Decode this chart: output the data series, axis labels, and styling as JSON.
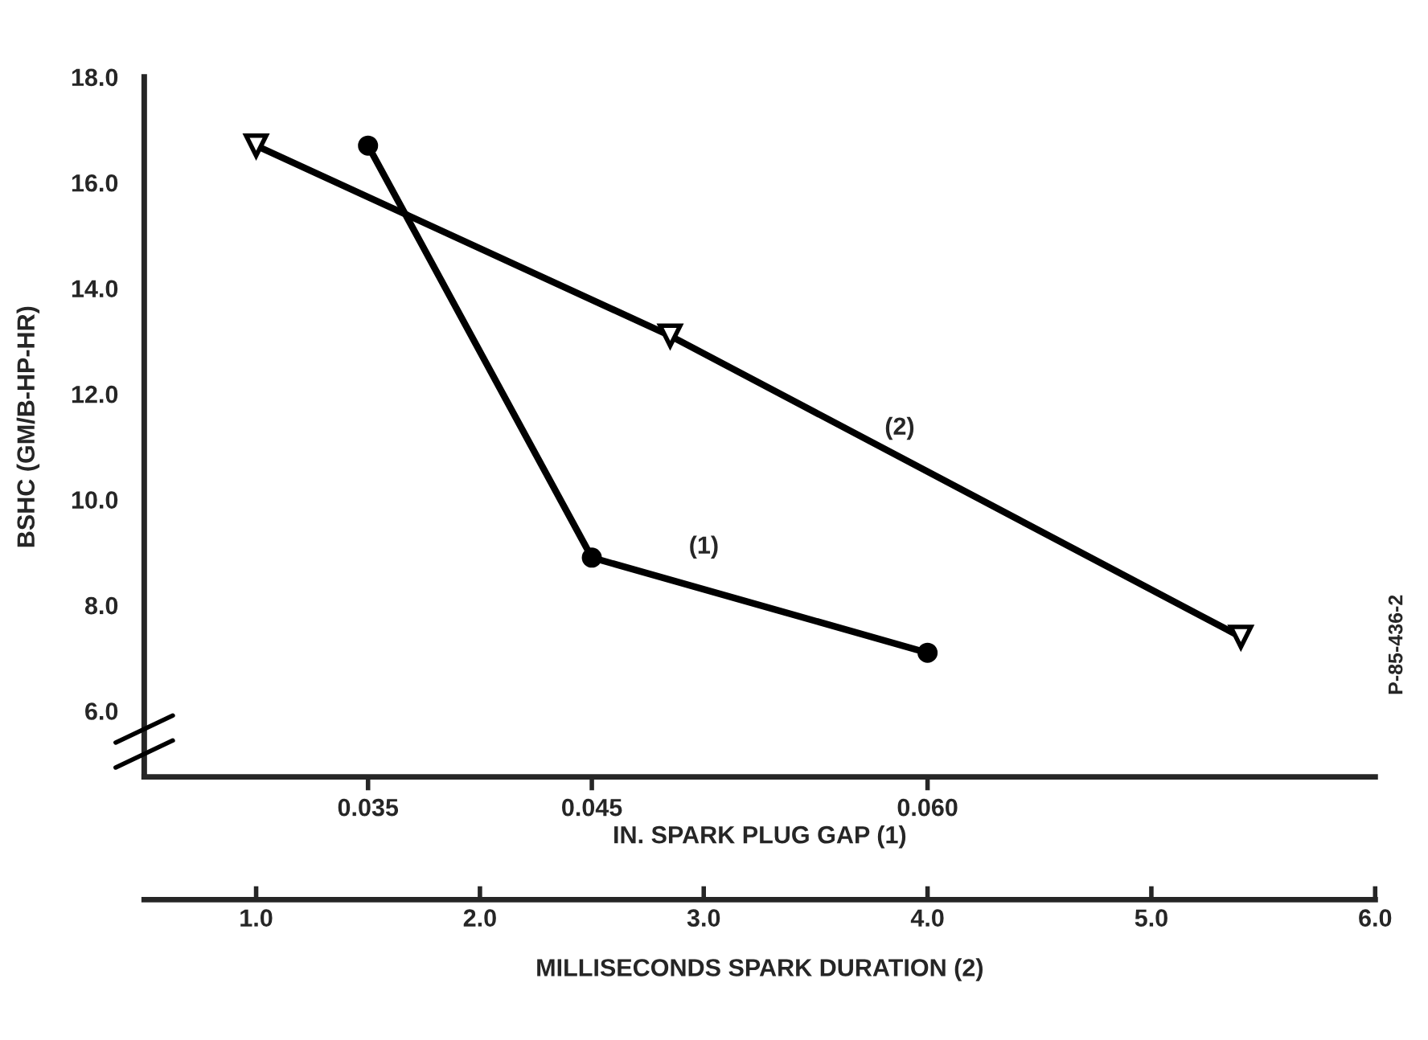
{
  "chart_data": {
    "type": "line",
    "xlabel": "IN. SPARK PLUG GAP (1)",
    "ylabel": "BSHC (GM/B-HP-HR)",
    "x2label": "MILLISECONDS SPARK DURATION (2)",
    "xlim": [
      0.025,
      0.08
    ],
    "xticks": [
      0.035,
      0.045,
      {
        "value": 0.06,
        "label": "0.060"
      }
    ],
    "x2lim": [
      0.5,
      6.0
    ],
    "x2ticks": [
      {
        "value": 1,
        "label": "1.0"
      },
      {
        "value": 2,
        "label": "2.0"
      },
      {
        "value": 3,
        "label": "3.0"
      },
      {
        "value": 4,
        "label": "4.0"
      },
      {
        "value": 5,
        "label": "5.0"
      },
      {
        "value": 6,
        "label": "6.0"
      }
    ],
    "ylim": [
      4.75,
      18.0
    ],
    "yticks": [
      {
        "value": 6,
        "label": "6.0"
      },
      {
        "value": 8,
        "label": "8.0"
      },
      {
        "value": 10,
        "label": "10.0"
      },
      {
        "value": 12,
        "label": "12.0"
      },
      {
        "value": 14,
        "label": "14.0"
      },
      {
        "value": 16,
        "label": "16.0"
      },
      {
        "value": 18,
        "label": "18.0"
      }
    ],
    "series": [
      {
        "name": "(1)",
        "color": "#000000",
        "marker": "circle",
        "x": [
          0.035,
          0.045,
          0.06
        ],
        "values": [
          16.7,
          8.9,
          7.1
        ]
      },
      {
        "name": "(2)",
        "color": "#000000",
        "marker": "triangle",
        "axis": "x2",
        "x": [
          1.0,
          2.85,
          5.4
        ],
        "values": [
          16.7,
          13.1,
          7.4
        ]
      }
    ],
    "annotations": [
      "P-85-436-2"
    ],
    "grid": false,
    "legend": false
  }
}
